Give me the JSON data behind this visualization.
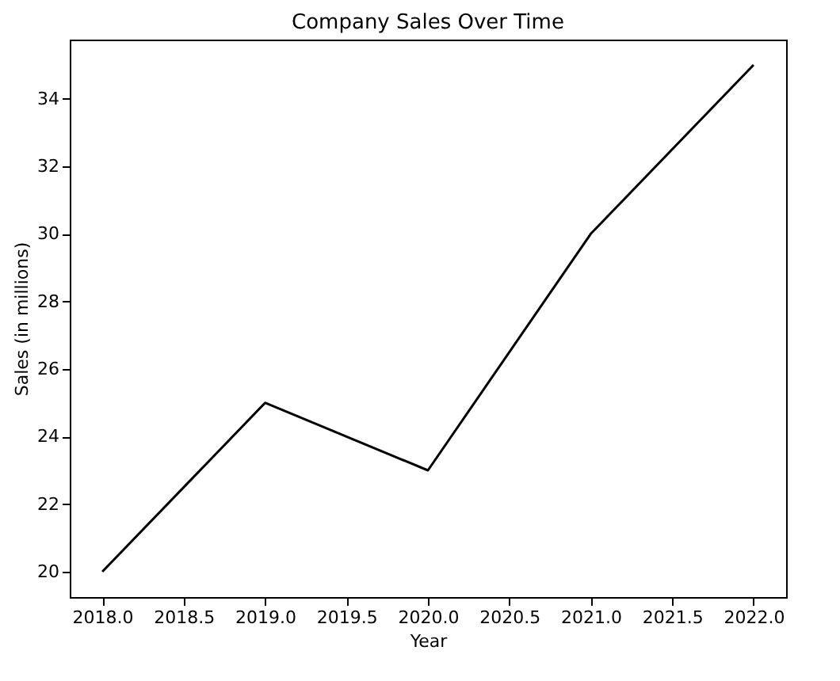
{
  "chart_data": {
    "type": "line",
    "title": "Company Sales Over Time",
    "xlabel": "Year",
    "ylabel": "Sales (in millions)",
    "x": [
      2018,
      2019,
      2020,
      2021,
      2022
    ],
    "series": [
      {
        "color": "#000000",
        "values": [
          20,
          25,
          23,
          30,
          35
        ]
      }
    ],
    "xlim": [
      2017.8,
      2022.2
    ],
    "xticks": [
      {
        "value": 2018,
        "label": "2018.0"
      },
      {
        "value": 2018.5,
        "label": "2018.5"
      },
      {
        "value": 2019,
        "label": "2019.0"
      },
      {
        "value": 2019.5,
        "label": "2019.5"
      },
      {
        "value": 2020,
        "label": "2020.0"
      },
      {
        "value": 2020.5,
        "label": "2020.5"
      },
      {
        "value": 2021,
        "label": "2021.0"
      },
      {
        "value": 2021.5,
        "label": "2021.5"
      },
      {
        "value": 2022,
        "label": "2022.0"
      }
    ],
    "ylim": [
      19.25,
      35.75
    ],
    "yticks": [
      20,
      22,
      24,
      26,
      28,
      30,
      32,
      34
    ],
    "grid": false
  }
}
